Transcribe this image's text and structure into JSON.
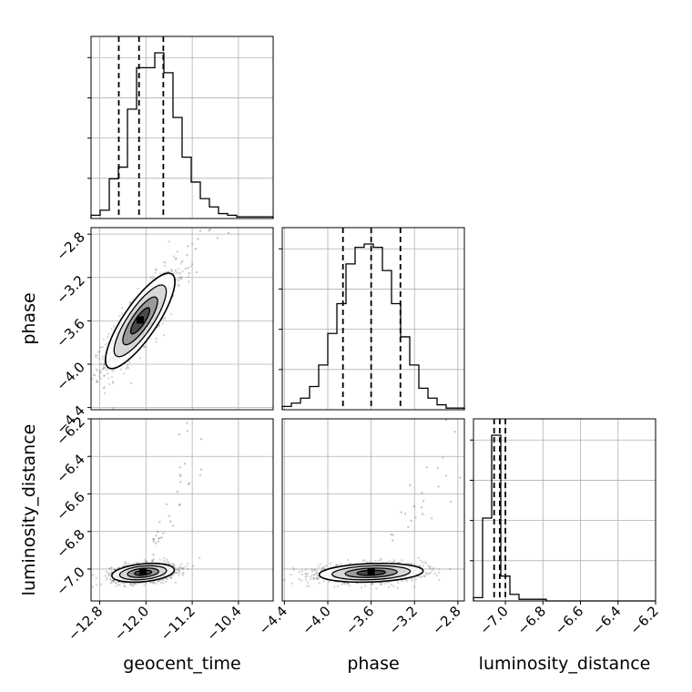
{
  "chart_data": {
    "type": "corner",
    "parameters": [
      "geocent_time",
      "phase",
      "luminosity_distance"
    ],
    "axis_labels": {
      "x": [
        "geocent_time",
        "phase",
        "luminosity_distance"
      ],
      "y": [
        "phase",
        "luminosity_distance"
      ]
    },
    "ranges": {
      "geocent_time": [
        -12.95,
        -9.8
      ],
      "phase": [
        -4.42,
        -2.74
      ],
      "luminosity_distance": [
        -7.17,
        -6.2
      ]
    },
    "ticks": {
      "geocent_time": [
        -12.8,
        -12.0,
        -11.2,
        -10.4
      ],
      "phase": [
        -4.4,
        -4.0,
        -3.6,
        -3.2,
        -2.8
      ],
      "luminosity_distance": [
        -7.0,
        -6.8,
        -6.6,
        -6.4,
        -6.2
      ]
    },
    "tick_labels": {
      "geocent_time": [
        "−12.8",
        "−12.0",
        "−11.2",
        "−10.4"
      ],
      "phase": [
        "−4.4",
        "−4.0",
        "−3.6",
        "−3.2",
        "−2.8"
      ],
      "phase_left": [
        "−2.8",
        "−3.2",
        "−3.6",
        "−4.0",
        "−4.4"
      ],
      "luminosity_distance": [
        "−7.0",
        "−6.8",
        "−6.6",
        "−6.4",
        "−6.2"
      ],
      "luminosity_distance_left": [
        "−6.2",
        "−6.4",
        "−6.6",
        "−6.8",
        "−7.0"
      ]
    },
    "grid": true,
    "histograms": {
      "geocent_time": {
        "bin_start": -12.95,
        "bin_width": 0.1575,
        "counts": [
          2,
          5,
          24,
          31,
          66,
          91,
          91,
          100,
          88,
          61,
          37,
          22,
          12,
          7,
          3,
          2,
          1,
          1,
          1,
          1
        ],
        "quantiles": [
          -12.47,
          -12.12,
          -11.7
        ]
      },
      "phase": {
        "bin_start": -4.42,
        "bin_width": 0.084,
        "counts": [
          2,
          4,
          7,
          14,
          27,
          46,
          64,
          88,
          98,
          100,
          98,
          84,
          64,
          44,
          27,
          13,
          7,
          3,
          1,
          1
        ],
        "quantiles": [
          -3.86,
          -3.6,
          -3.33
        ]
      },
      "luminosity_distance": {
        "bin_start": -7.17,
        "bin_width": 0.0485,
        "counts": [
          2,
          50,
          100,
          15,
          4,
          1,
          1,
          1,
          0,
          0,
          0,
          0,
          0,
          0,
          0,
          0,
          0,
          0,
          0,
          0
        ],
        "quantiles": [
          -7.06,
          -7.03,
          -7.0
        ]
      }
    },
    "pairs": [
      {
        "x": "geocent_time",
        "y": "phase",
        "mean": [
          -12.1,
          -3.6
        ],
        "sd": [
          0.3,
          0.22
        ],
        "rho": 0.82,
        "n": 1200
      },
      {
        "x": "geocent_time",
        "y": "luminosity_distance",
        "mean": [
          -12.05,
          -7.02
        ],
        "sd": [
          0.27,
          0.025
        ],
        "rho": 0.3,
        "n": 1200
      },
      {
        "x": "phase",
        "y": "luminosity_distance",
        "mean": [
          -3.6,
          -7.02
        ],
        "sd": [
          0.24,
          0.025
        ],
        "rho": 0.2,
        "n": 1200
      }
    ]
  }
}
